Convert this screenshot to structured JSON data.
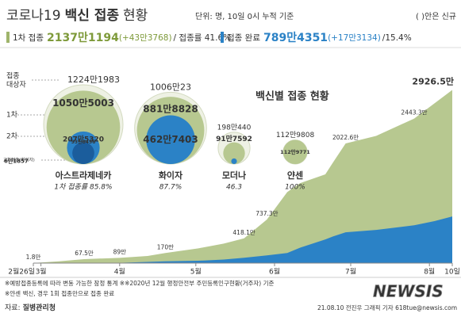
{
  "header": {
    "title": [
      "코로나19",
      "백신 접종",
      "현황"
    ],
    "unit": "단위: 명, 10일 0시 누적 기준",
    "note": "( )안은 신규"
  },
  "summary": {
    "first": {
      "label": "1차 접종",
      "count": "2137만1194",
      "new": "(+43만3768)",
      "rate": "/ 접종률 41.6%"
    },
    "complete": {
      "label": "접종 완료",
      "count": "789만4351",
      "new": "(+17만3134)",
      "rate": "/15.4%"
    }
  },
  "bubbles": {
    "title": "백신별 접종 현황",
    "row_labels": {
      "target": [
        "접종",
        "대상자"
      ],
      "first": "1차",
      "second": "2차",
      "cross": "교차접종(화이자)"
    },
    "vaccines": [
      {
        "name": "아스트라제네카",
        "rate": "1차 접종률 85.8%",
        "target": {
          "value": 12241983,
          "label": "1224만1983"
        },
        "first": {
          "value": 10505003,
          "label": "1050만5003"
        },
        "second": {
          "value": 2075320,
          "label": "207만5320"
        },
        "cross": {
          "value": 938456,
          "label": "93만8456"
        }
      },
      {
        "name": "화이자",
        "rate": "87.7%",
        "target": {
          "value": 10060023,
          "label": "1006만23"
        },
        "first": {
          "value": 8818828,
          "label": "881만8828"
        },
        "second": {
          "value": 4627403,
          "label": "462만7403"
        }
      },
      {
        "name": "모더나",
        "rate": "46.3",
        "target": {
          "value": 1980440,
          "label": "198만440"
        },
        "first": {
          "value": 917592,
          "label": "91만7592"
        },
        "second": {
          "value": 61857,
          "label": "6만1857"
        }
      },
      {
        "name": "얀센",
        "rate": "100%",
        "target": {
          "value": 1129808,
          "label": "112만9808"
        },
        "first": {
          "value": 1129771,
          "label": "112만9771"
        }
      }
    ]
  },
  "chart_data": {
    "type": "area",
    "x": [
      0,
      10,
      20,
      34,
      45,
      52,
      65,
      75,
      83,
      92,
      100,
      105,
      115,
      118,
      123,
      135,
      150,
      158,
      165
    ],
    "xlim": [
      0,
      165
    ],
    "xticks": [
      {
        "value": 0,
        "label": "2월26일"
      },
      {
        "value": 3,
        "label": "3월"
      },
      {
        "value": 34,
        "label": "4월"
      },
      {
        "value": 64,
        "label": "5월"
      },
      {
        "value": 95,
        "label": "6월"
      },
      {
        "value": 125,
        "label": "7월"
      },
      {
        "value": 156,
        "label": "8월"
      },
      {
        "value": 165,
        "label": "10일"
      }
    ],
    "ylim": [
      0,
      3000
    ],
    "series": [
      {
        "color": "#b7c890",
        "values": [
          1.8,
          30,
          67.5,
          89,
          120,
          170,
          250,
          330,
          418.1,
          737.3,
          1200,
          1350,
          1500,
          1700,
          2022.6,
          2150,
          2443.3,
          2700,
          2926.5
        ],
        "value_labels": [
          "1.8만",
          null,
          "67.5만",
          "89만",
          null,
          "170만",
          null,
          null,
          "418.1만",
          "737.3만",
          null,
          null,
          null,
          null,
          "2022.6만",
          null,
          "2443.3만",
          null,
          "2926.5만"
        ]
      },
      {
        "color": "#2b82c6",
        "values": [
          0,
          0,
          0,
          5,
          20,
          30,
          40,
          60,
          90,
          130,
          170,
          260,
          400,
          450,
          520,
          560,
          640,
          710,
          789
        ]
      }
    ]
  },
  "footer": {
    "notes": [
      "※예방접종등록에 따라 변동 가능한 잠정 통계 ※※2020년 12월 행정안전부 주민등록인구현황(거주자) 기준",
      "※얀센 백신, 경우 1회 접종만으로 접종 완료"
    ],
    "source": [
      "자료:",
      "질병관리청"
    ],
    "credit": "21.08.10 전진우 그래픽 기자 618tue@newsis.com",
    "watermark": "NEWSIS"
  }
}
